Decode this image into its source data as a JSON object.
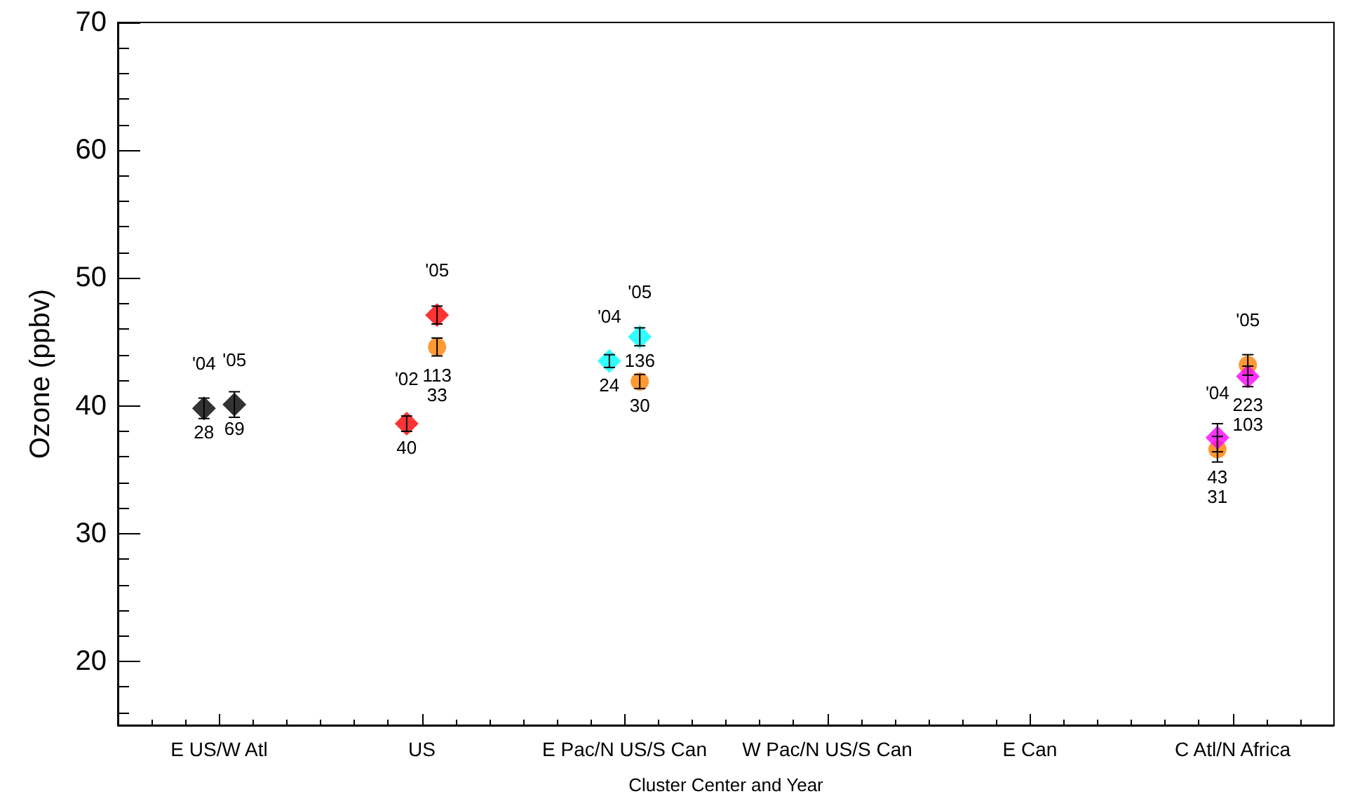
{
  "chart_data": {
    "type": "scatter",
    "xlabel": "Cluster Center and Year",
    "ylabel": "Ozone (ppbv)",
    "categories": [
      "E US/W Atl",
      "US",
      "E Pac/N US/S Can",
      "W Pac/N US/S Can",
      "E Can",
      "C Atl/N Africa"
    ],
    "ylim": [
      15,
      70
    ],
    "yticks": [
      20,
      30,
      40,
      50,
      60,
      70
    ],
    "grid": false,
    "marker": "diamond",
    "series": [
      {
        "color": "#000000",
        "x": [
          "E US/W Atl",
          "E US/W Atl"
        ],
        "values": [
          39.8,
          40.1
        ],
        "errors": [
          0.8,
          1.0
        ]
      },
      {
        "color": "#ff0000",
        "x": [
          "US",
          "US"
        ],
        "values": [
          38.6,
          47.1
        ],
        "errors": [
          0.6,
          0.7
        ]
      },
      {
        "color": "#ff8000",
        "marker": "circle",
        "x": [
          "US",
          "E Pac/N US/S Can",
          "C Atl/N Africa",
          "C Atl/N Africa"
        ],
        "values": [
          44.6,
          41.9,
          36.6,
          43.2
        ],
        "errors": [
          0.7,
          0.55,
          1.0,
          0.8
        ]
      },
      {
        "color": "#00ffff",
        "x": [
          "E Pac/N US/S Can",
          "E Pac/N US/S Can"
        ],
        "values": [
          43.5,
          45.4
        ],
        "errors": [
          0.5,
          0.7
        ]
      },
      {
        "color": "#ff00ff",
        "x": [
          "C Atl/N Africa",
          "C Atl/N Africa"
        ],
        "values": [
          37.5,
          42.3
        ],
        "errors": [
          1.1,
          0.8
        ]
      }
    ],
    "annotations": [
      {
        "text": "'04",
        "x": "E US/W Atl",
        "y": 39.8
      },
      {
        "text": "28",
        "x": "E US/W Atl",
        "y": 39.8
      },
      {
        "text": "'05",
        "x": "E US/W Atl",
        "y": 40.1
      },
      {
        "text": "69",
        "x": "E US/W Atl",
        "y": 40.1
      },
      {
        "text": "'02",
        "x": "US",
        "y": 38.6
      },
      {
        "text": "40",
        "x": "US",
        "y": 38.6
      },
      {
        "text": "'05",
        "x": "US",
        "y": 47.1
      },
      {
        "text": "113",
        "x": "US",
        "y": 47.1
      },
      {
        "text": "33",
        "x": "US",
        "y": 44.6
      },
      {
        "text": "'04",
        "x": "E Pac/N US/S Can",
        "y": 43.5
      },
      {
        "text": "24",
        "x": "E Pac/N US/S Can",
        "y": 43.5
      },
      {
        "text": "'05",
        "x": "E Pac/N US/S Can",
        "y": 45.4
      },
      {
        "text": "136",
        "x": "E Pac/N US/S Can",
        "y": 45.4
      },
      {
        "text": "30",
        "x": "E Pac/N US/S Can",
        "y": 41.9
      },
      {
        "text": "'04",
        "x": "C Atl/N Africa",
        "y": 37.5
      },
      {
        "text": "43",
        "x": "C Atl/N Africa",
        "y": 37.5
      },
      {
        "text": "31",
        "x": "C Atl/N Africa",
        "y": 36.6
      },
      {
        "text": "'05",
        "x": "C Atl/N Africa",
        "y": 42.3
      },
      {
        "text": "103",
        "x": "C Atl/N Africa",
        "y": 42.3
      },
      {
        "text": "223",
        "x": "C Atl/N Africa",
        "y": 43.2
      }
    ]
  }
}
